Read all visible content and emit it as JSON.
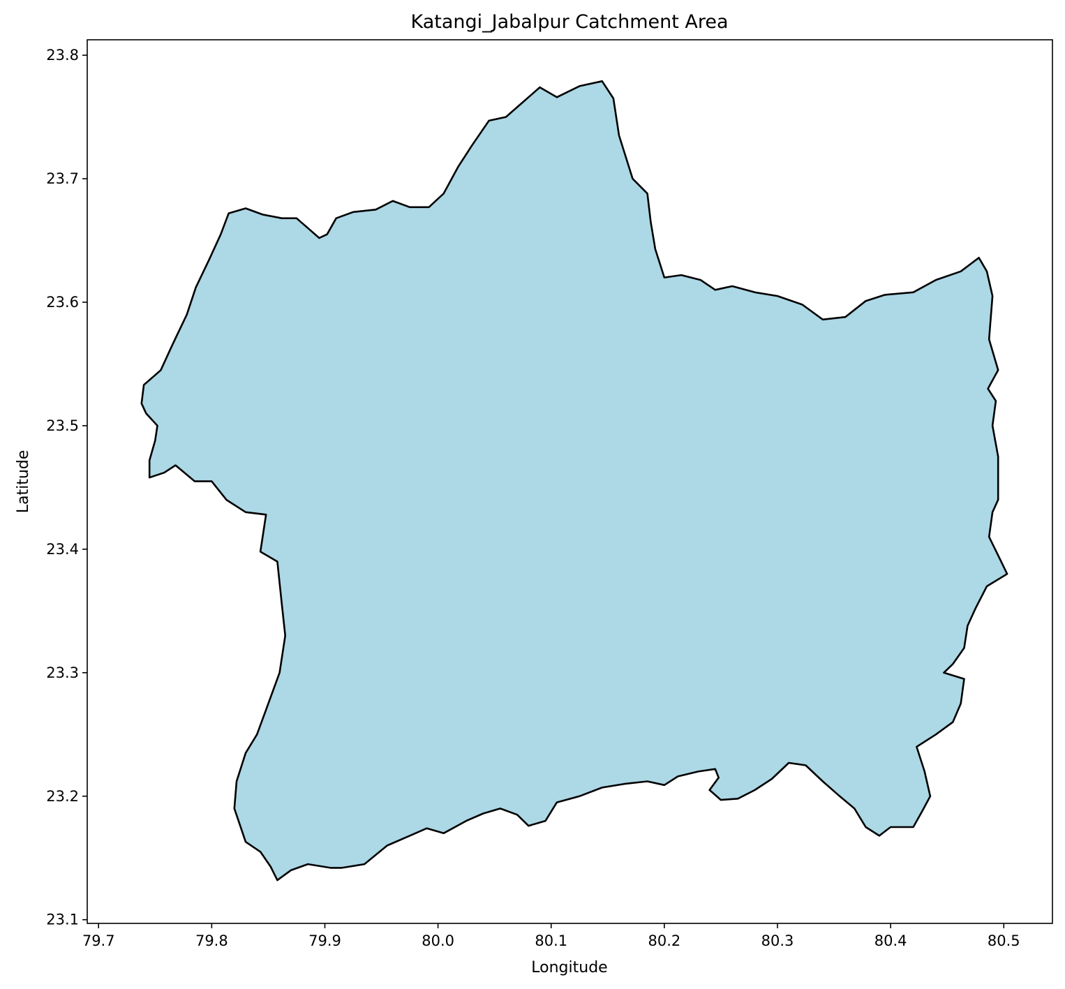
{
  "title": "Katangi_Jabalpur Catchment Area",
  "xlabel": "Longitude",
  "ylabel": "Latitude",
  "colors": {
    "fill": "#add8e6",
    "edge": "#000000",
    "background": "#ffffff"
  },
  "axes": {
    "xlim": [
      79.69,
      80.543
    ],
    "ylim": [
      23.097,
      23.8125
    ],
    "xticks": [
      79.7,
      79.8,
      79.9,
      80.0,
      80.1,
      80.2,
      80.3,
      80.4,
      80.5
    ],
    "xtick_labels": [
      "79.7",
      "79.8",
      "79.9",
      "80.0",
      "80.1",
      "80.2",
      "80.3",
      "80.4",
      "80.5"
    ],
    "yticks": [
      23.1,
      23.2,
      23.3,
      23.4,
      23.5,
      23.6,
      23.7,
      23.8
    ],
    "ytick_labels": [
      "23.1",
      "23.2",
      "23.3",
      "23.4",
      "23.5",
      "23.6",
      "23.7",
      "23.8"
    ]
  },
  "chart_data": {
    "type": "area",
    "title": "Katangi_Jabalpur Catchment Area",
    "xlabel": "Longitude",
    "ylabel": "Latitude",
    "xlim": [
      79.69,
      80.543
    ],
    "ylim": [
      23.097,
      23.8125
    ],
    "grid": false,
    "boundary": [
      [
        79.74,
        23.533
      ],
      [
        79.755,
        23.545
      ],
      [
        79.765,
        23.565
      ],
      [
        79.778,
        23.59
      ],
      [
        79.786,
        23.612
      ],
      [
        79.798,
        23.635
      ],
      [
        79.808,
        23.655
      ],
      [
        79.815,
        23.672
      ],
      [
        79.83,
        23.676
      ],
      [
        79.845,
        23.671
      ],
      [
        79.862,
        23.668
      ],
      [
        79.875,
        23.668
      ],
      [
        79.885,
        23.66
      ],
      [
        79.895,
        23.652
      ],
      [
        79.902,
        23.655
      ],
      [
        79.91,
        23.668
      ],
      [
        79.925,
        23.673
      ],
      [
        79.945,
        23.675
      ],
      [
        79.96,
        23.682
      ],
      [
        79.975,
        23.677
      ],
      [
        79.992,
        23.677
      ],
      [
        80.005,
        23.688
      ],
      [
        80.018,
        23.71
      ],
      [
        80.03,
        23.727
      ],
      [
        80.045,
        23.747
      ],
      [
        80.06,
        23.75
      ],
      [
        80.075,
        23.762
      ],
      [
        80.09,
        23.774
      ],
      [
        80.105,
        23.766
      ],
      [
        80.125,
        23.775
      ],
      [
        80.145,
        23.779
      ],
      [
        80.155,
        23.765
      ],
      [
        80.16,
        23.735
      ],
      [
        80.172,
        23.7
      ],
      [
        80.185,
        23.688
      ],
      [
        80.188,
        23.665
      ],
      [
        80.192,
        23.643
      ],
      [
        80.2,
        23.62
      ],
      [
        80.215,
        23.622
      ],
      [
        80.232,
        23.618
      ],
      [
        80.245,
        23.61
      ],
      [
        80.26,
        23.613
      ],
      [
        80.28,
        23.608
      ],
      [
        80.3,
        23.605
      ],
      [
        80.322,
        23.598
      ],
      [
        80.34,
        23.586
      ],
      [
        80.36,
        23.588
      ],
      [
        80.378,
        23.601
      ],
      [
        80.395,
        23.606
      ],
      [
        80.42,
        23.608
      ],
      [
        80.44,
        23.618
      ],
      [
        80.462,
        23.625
      ],
      [
        80.478,
        23.636
      ],
      [
        80.485,
        23.625
      ],
      [
        80.49,
        23.605
      ],
      [
        80.487,
        23.57
      ],
      [
        80.495,
        23.545
      ],
      [
        80.486,
        23.53
      ],
      [
        80.493,
        23.52
      ],
      [
        80.49,
        23.5
      ],
      [
        80.495,
        23.475
      ],
      [
        80.495,
        23.44
      ],
      [
        80.49,
        23.43
      ],
      [
        80.487,
        23.41
      ],
      [
        80.495,
        23.395
      ],
      [
        80.503,
        23.38
      ],
      [
        80.485,
        23.37
      ],
      [
        80.475,
        23.352
      ],
      [
        80.468,
        23.338
      ],
      [
        80.465,
        23.32
      ],
      [
        80.455,
        23.307
      ],
      [
        80.447,
        23.3
      ],
      [
        80.465,
        23.295
      ],
      [
        80.462,
        23.275
      ],
      [
        80.455,
        23.26
      ],
      [
        80.44,
        23.25
      ],
      [
        80.423,
        23.24
      ],
      [
        80.43,
        23.22
      ],
      [
        80.435,
        23.2
      ],
      [
        80.428,
        23.188
      ],
      [
        80.42,
        23.175
      ],
      [
        80.4,
        23.175
      ],
      [
        80.39,
        23.168
      ],
      [
        80.378,
        23.175
      ],
      [
        80.368,
        23.19
      ],
      [
        80.355,
        23.2
      ],
      [
        80.34,
        23.212
      ],
      [
        80.325,
        23.225
      ],
      [
        80.31,
        23.227
      ],
      [
        80.295,
        23.214
      ],
      [
        80.28,
        23.205
      ],
      [
        80.265,
        23.198
      ],
      [
        80.25,
        23.197
      ],
      [
        80.24,
        23.205
      ],
      [
        80.248,
        23.215
      ],
      [
        80.245,
        23.222
      ],
      [
        80.23,
        23.22
      ],
      [
        80.212,
        23.216
      ],
      [
        80.2,
        23.209
      ],
      [
        80.185,
        23.212
      ],
      [
        80.165,
        23.21
      ],
      [
        80.145,
        23.207
      ],
      [
        80.125,
        23.2
      ],
      [
        80.105,
        23.195
      ],
      [
        80.095,
        23.18
      ],
      [
        80.08,
        23.176
      ],
      [
        80.07,
        23.185
      ],
      [
        80.055,
        23.19
      ],
      [
        80.04,
        23.186
      ],
      [
        80.025,
        23.18
      ],
      [
        80.005,
        23.17
      ],
      [
        79.99,
        23.174
      ],
      [
        79.975,
        23.168
      ],
      [
        79.955,
        23.16
      ],
      [
        79.935,
        23.145
      ],
      [
        79.915,
        23.142
      ],
      [
        79.905,
        23.142
      ],
      [
        79.885,
        23.145
      ],
      [
        79.87,
        23.14
      ],
      [
        79.858,
        23.132
      ],
      [
        79.852,
        23.143
      ],
      [
        79.843,
        23.155
      ],
      [
        79.83,
        23.163
      ],
      [
        79.82,
        23.19
      ],
      [
        79.822,
        23.212
      ],
      [
        79.83,
        23.235
      ],
      [
        79.84,
        23.25
      ],
      [
        79.848,
        23.27
      ],
      [
        79.86,
        23.3
      ],
      [
        79.865,
        23.33
      ],
      [
        79.862,
        23.355
      ],
      [
        79.858,
        23.39
      ],
      [
        79.843,
        23.398
      ],
      [
        79.848,
        23.428
      ],
      [
        79.83,
        23.43
      ],
      [
        79.813,
        23.44
      ],
      [
        79.8,
        23.455
      ],
      [
        79.785,
        23.455
      ],
      [
        79.768,
        23.468
      ],
      [
        79.758,
        23.462
      ],
      [
        79.745,
        23.458
      ],
      [
        79.745,
        23.472
      ],
      [
        79.75,
        23.488
      ],
      [
        79.752,
        23.5
      ],
      [
        79.742,
        23.51
      ],
      [
        79.738,
        23.518
      ]
    ]
  }
}
